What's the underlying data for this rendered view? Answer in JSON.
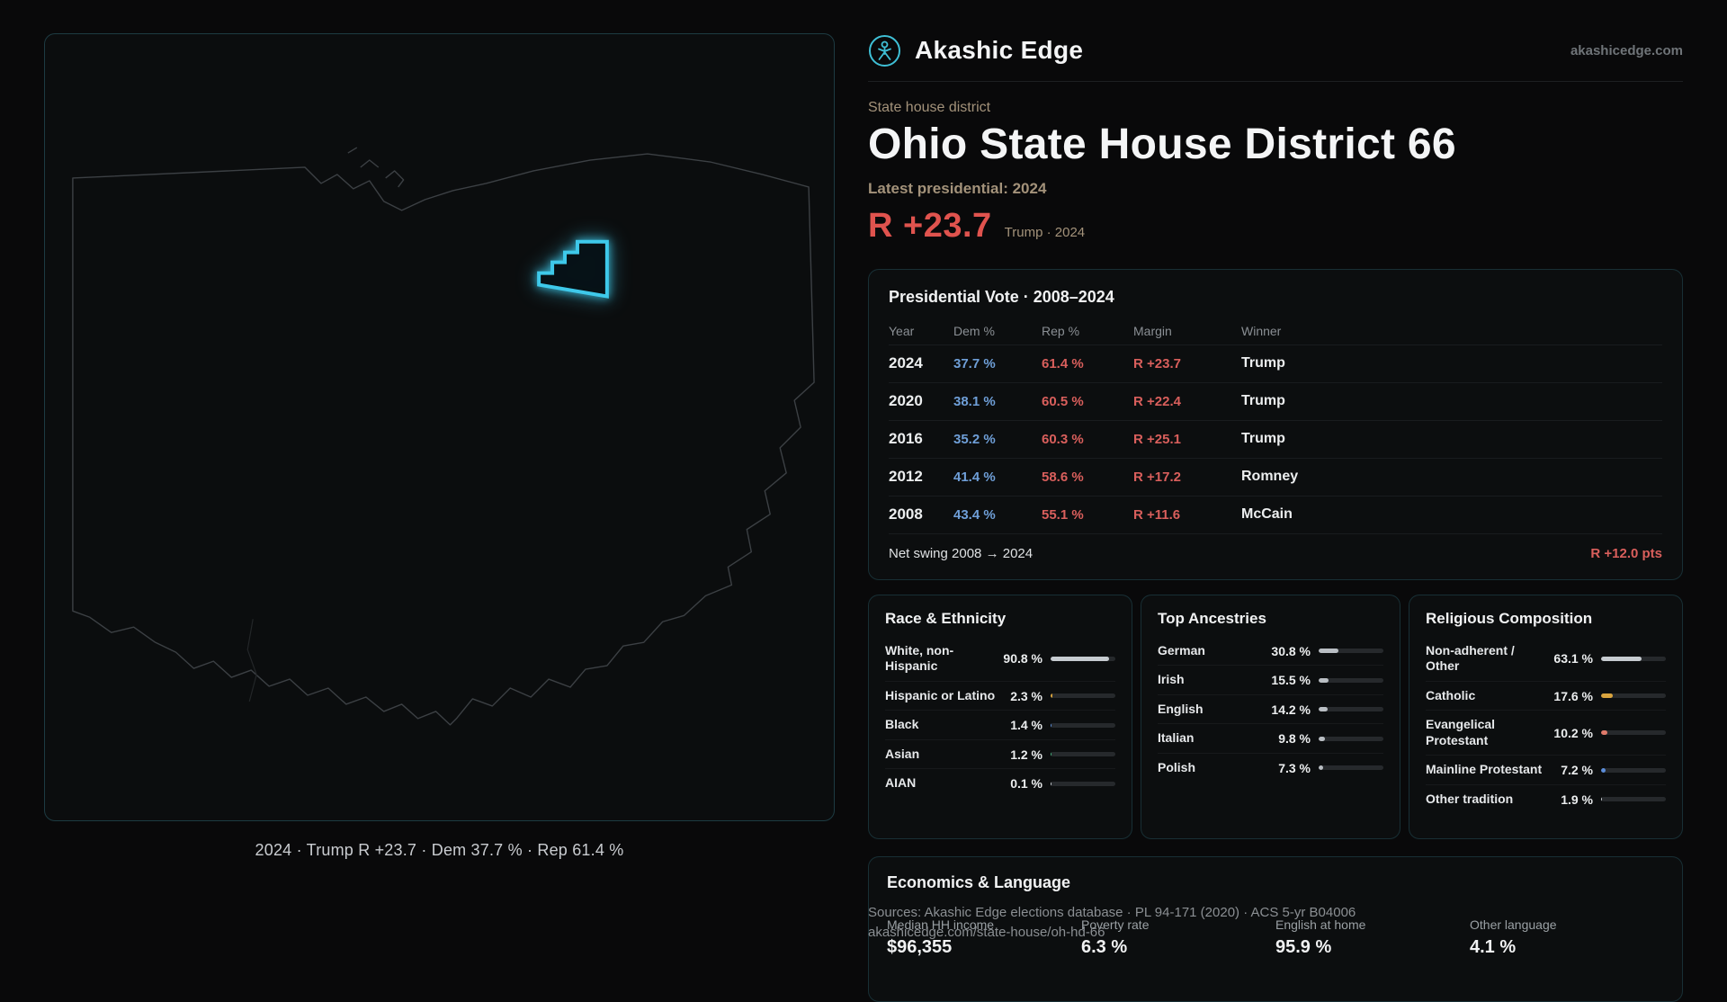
{
  "brand": {
    "name": "Akashic Edge",
    "domain": "akashicedge.com",
    "accent_teal": "#3ec9ea",
    "accent_red": "#e0534e",
    "accent_blue": "#6f9fd8",
    "accent_gold": "#a3927a"
  },
  "hero": {
    "eyebrow": "State house district",
    "title": "Ohio State House District 66",
    "latest_label": "Latest presidential: 2024",
    "margin_big": "R +23.7",
    "margin_note": "Trump · 2024"
  },
  "map": {
    "caption": "2024 · Trump R +23.7 · Dem 37.7 % · Rep 61.4 %"
  },
  "presidential": {
    "title": "Presidential Vote · 2008–2024",
    "columns": {
      "year": "Year",
      "dem": "Dem %",
      "rep": "Rep %",
      "margin": "Margin",
      "winner": "Winner"
    },
    "rows": [
      {
        "year": "2024",
        "dem": "37.7 %",
        "rep": "61.4 %",
        "margin": "R +23.7",
        "winner": "Trump"
      },
      {
        "year": "2020",
        "dem": "38.1 %",
        "rep": "60.5 %",
        "margin": "R +22.4",
        "winner": "Trump"
      },
      {
        "year": "2016",
        "dem": "35.2 %",
        "rep": "60.3 %",
        "margin": "R +25.1",
        "winner": "Trump"
      },
      {
        "year": "2012",
        "dem": "41.4 %",
        "rep": "58.6 %",
        "margin": "R +17.2",
        "winner": "Romney"
      },
      {
        "year": "2008",
        "dem": "43.4 %",
        "rep": "55.1 %",
        "margin": "R +11.6",
        "winner": "McCain"
      }
    ],
    "net_swing_label": "Net swing 2008 → 2024",
    "net_swing_value": "R +12.0 pts"
  },
  "race": {
    "title": "Race & Ethnicity",
    "rows": [
      {
        "label": "White, non-Hispanic",
        "value": "90.8 %",
        "pct": 90.8,
        "color": "#c6cbd0"
      },
      {
        "label": "Hispanic or Latino",
        "value": "2.3 %",
        "pct": 2.3,
        "color": "#d9a43e"
      },
      {
        "label": "Black",
        "value": "1.4 %",
        "pct": 1.4,
        "color": "#5b8dd9"
      },
      {
        "label": "Asian",
        "value": "1.2 %",
        "pct": 1.2,
        "color": "#44b07a"
      },
      {
        "label": "AIAN",
        "value": "0.1 %",
        "pct": 0.1,
        "color": "#c6cbd0"
      }
    ]
  },
  "ancestries": {
    "title": "Top Ancestries",
    "rows": [
      {
        "label": "German",
        "value": "30.8 %",
        "pct": 30.8,
        "color": "#b9bec3"
      },
      {
        "label": "Irish",
        "value": "15.5 %",
        "pct": 15.5,
        "color": "#b9bec3"
      },
      {
        "label": "English",
        "value": "14.2 %",
        "pct": 14.2,
        "color": "#b9bec3"
      },
      {
        "label": "Italian",
        "value": "9.8 %",
        "pct": 9.8,
        "color": "#b9bec3"
      },
      {
        "label": "Polish",
        "value": "7.3 %",
        "pct": 7.3,
        "color": "#b9bec3"
      }
    ]
  },
  "religion": {
    "title": "Religious Composition",
    "rows": [
      {
        "label": "Non-adherent / Other",
        "value": "63.1 %",
        "pct": 63.1,
        "color": "#c6cbd0"
      },
      {
        "label": "Catholic",
        "value": "17.6 %",
        "pct": 17.6,
        "color": "#d9a43e"
      },
      {
        "label": "Evangelical Protestant",
        "value": "10.2 %",
        "pct": 10.2,
        "color": "#e07a6a"
      },
      {
        "label": "Mainline Protestant",
        "value": "7.2 %",
        "pct": 7.2,
        "color": "#5b8dd9"
      },
      {
        "label": "Other tradition",
        "value": "1.9 %",
        "pct": 1.9,
        "color": "#c6cbd0"
      }
    ]
  },
  "economics": {
    "title": "Economics & Language",
    "stats": [
      {
        "label": "Median HH income",
        "value": "$96,355"
      },
      {
        "label": "Poverty rate",
        "value": "6.3 %"
      },
      {
        "label": "English at home",
        "value": "95.9 %"
      },
      {
        "label": "Other language",
        "value": "4.1 %"
      }
    ]
  },
  "footer": {
    "line1": "Sources: Akashic Edge elections database · PL 94-171 (2020) · ACS 5-yr B04006",
    "line2": "akashicedge.com/state-house/oh-hd-66"
  }
}
